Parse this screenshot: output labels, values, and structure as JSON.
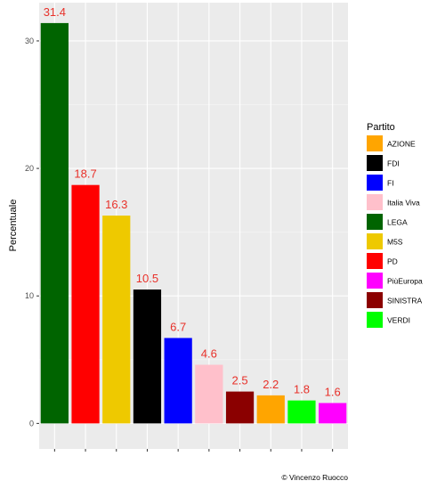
{
  "chart_data": {
    "type": "bar",
    "categories": [
      "LEGA",
      "PD",
      "M5S",
      "FDI",
      "FI",
      "Italia Viva",
      "SINISTRA",
      "AZIONE",
      "VERDI",
      "PiùEuropa"
    ],
    "values": [
      31.4,
      18.7,
      16.3,
      10.5,
      6.7,
      4.6,
      2.5,
      2.2,
      1.8,
      1.6
    ],
    "value_labels": [
      "31.4",
      "18.7",
      "16.3",
      "10.5",
      "6.7",
      "4.6",
      "2.5",
      "2.2",
      "1.8",
      "1.6"
    ],
    "bar_colors": [
      "#006400",
      "#ff0000",
      "#eec900",
      "#000000",
      "#0000ff",
      "#ffc0cb",
      "#8b0000",
      "#ffa500",
      "#00ff00",
      "#ff00ff"
    ],
    "ylabel": "Percentuale",
    "xlabel": "",
    "yticks": [
      0,
      10,
      20,
      30
    ],
    "ylim": [
      -2,
      33
    ],
    "grid": true,
    "x_tick_labels_shown": false,
    "label_color": "#e8312a",
    "panel_background": "#ebebeb",
    "legend": {
      "title": "Partito",
      "position": "right",
      "items": [
        {
          "label": "AZIONE",
          "color": "#ffa500"
        },
        {
          "label": "FDI",
          "color": "#000000"
        },
        {
          "label": "FI",
          "color": "#0000ff"
        },
        {
          "label": "Italia Viva",
          "color": "#ffc0cb"
        },
        {
          "label": "LEGA",
          "color": "#006400"
        },
        {
          "label": "M5S",
          "color": "#eec900"
        },
        {
          "label": "PD",
          "color": "#ff0000"
        },
        {
          "label": "PiùEuropa",
          "color": "#ff00ff"
        },
        {
          "label": "SINISTRA",
          "color": "#8b0000"
        },
        {
          "label": "VERDI",
          "color": "#00ff00"
        }
      ]
    },
    "caption": "© Vincenzo Ruocco"
  }
}
